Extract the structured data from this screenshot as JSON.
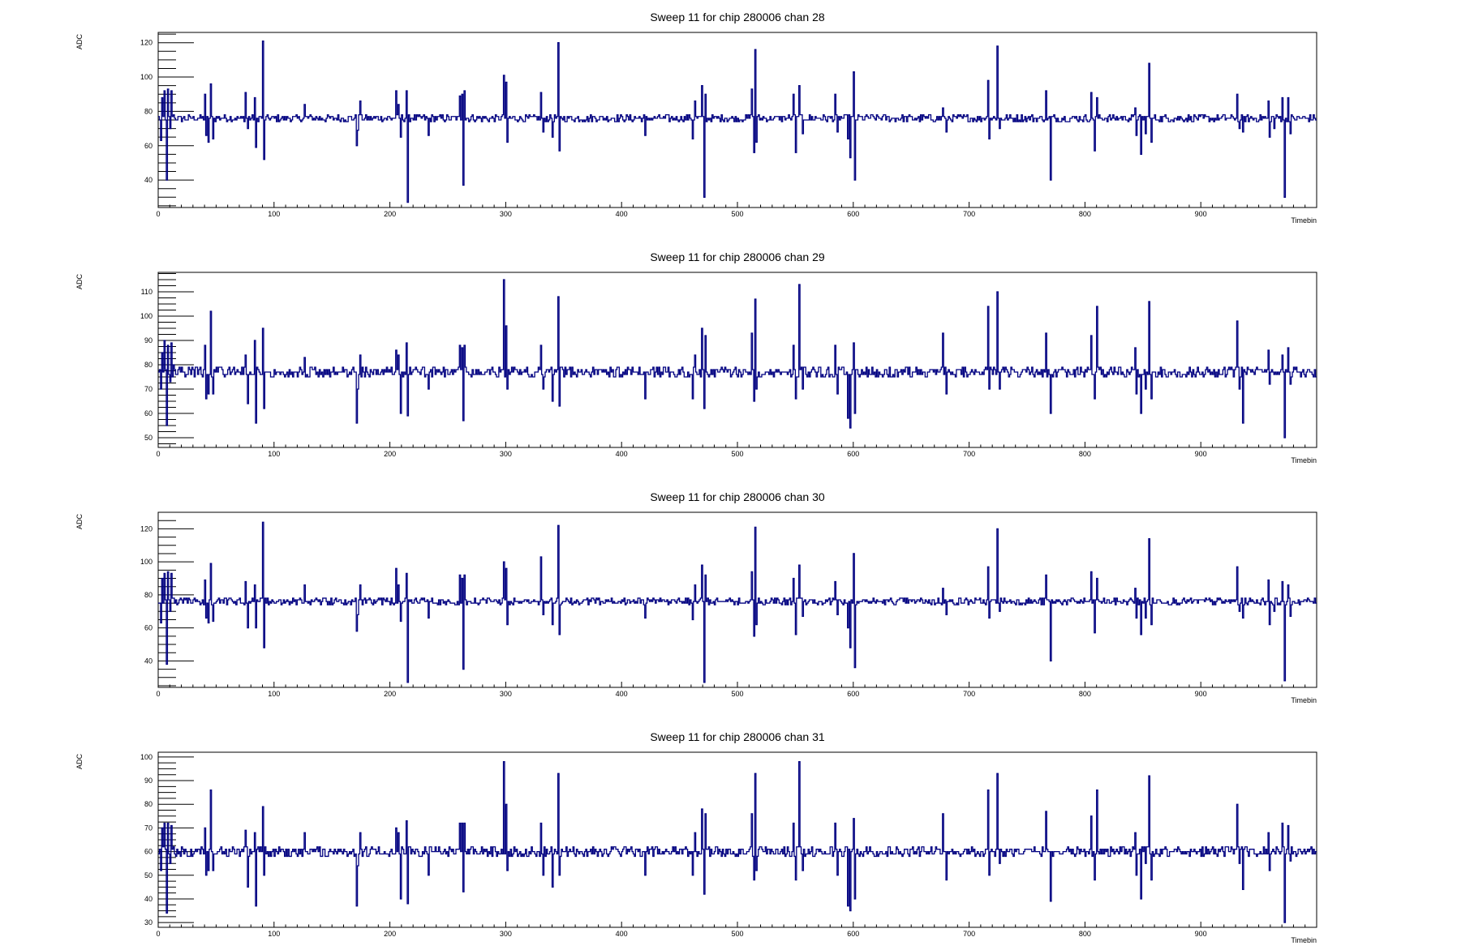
{
  "chart_data": [
    {
      "type": "line",
      "title": "Sweep 11 for chip 280006 chan 28",
      "xlabel": "Timebin",
      "ylabel": "ADC",
      "xlim": [
        0,
        1000
      ],
      "ylim": [
        24,
        126
      ],
      "yticks": [
        40,
        60,
        80,
        100,
        120
      ],
      "xticks": [
        0,
        100,
        200,
        300,
        400,
        500,
        600,
        700,
        800,
        900
      ],
      "baseline": 76,
      "line_color": "#000080",
      "spikes": [
        [
          2,
          63
        ],
        [
          3,
          88
        ],
        [
          5,
          92
        ],
        [
          7,
          40
        ],
        [
          8,
          93
        ],
        [
          10,
          70
        ],
        [
          11,
          92
        ],
        [
          13,
          78
        ],
        [
          40,
          90
        ],
        [
          41,
          66
        ],
        [
          43,
          62
        ],
        [
          45,
          96
        ],
        [
          47,
          64
        ],
        [
          75,
          91
        ],
        [
          77,
          70
        ],
        [
          83,
          88
        ],
        [
          84,
          59
        ],
        [
          90,
          121
        ],
        [
          91,
          52
        ],
        [
          126,
          84
        ],
        [
          171,
          60
        ],
        [
          172,
          69
        ],
        [
          174,
          86
        ],
        [
          205,
          92
        ],
        [
          207,
          84
        ],
        [
          209,
          65
        ],
        [
          214,
          92
        ],
        [
          215,
          27
        ],
        [
          233,
          66
        ],
        [
          260,
          89
        ],
        [
          262,
          90
        ],
        [
          263,
          37
        ],
        [
          264,
          92
        ],
        [
          298,
          101
        ],
        [
          300,
          97
        ],
        [
          301,
          62
        ],
        [
          330,
          91
        ],
        [
          332,
          68
        ],
        [
          340,
          65
        ],
        [
          345,
          120
        ],
        [
          346,
          57
        ],
        [
          420,
          66
        ],
        [
          461,
          64
        ],
        [
          463,
          86
        ],
        [
          469,
          95
        ],
        [
          471,
          30
        ],
        [
          472,
          90
        ],
        [
          512,
          93
        ],
        [
          514,
          56
        ],
        [
          515,
          116
        ],
        [
          516,
          62
        ],
        [
          548,
          90
        ],
        [
          550,
          56
        ],
        [
          553,
          95
        ],
        [
          556,
          67
        ],
        [
          584,
          90
        ],
        [
          586,
          68
        ],
        [
          595,
          64
        ],
        [
          597,
          53
        ],
        [
          600,
          103
        ],
        [
          601,
          40
        ],
        [
          677,
          82
        ],
        [
          680,
          68
        ],
        [
          716,
          98
        ],
        [
          717,
          64
        ],
        [
          724,
          118
        ],
        [
          726,
          70
        ],
        [
          766,
          92
        ],
        [
          770,
          40
        ],
        [
          805,
          91
        ],
        [
          808,
          57
        ],
        [
          810,
          88
        ],
        [
          843,
          82
        ],
        [
          844,
          66
        ],
        [
          848,
          55
        ],
        [
          852,
          67
        ],
        [
          855,
          108
        ],
        [
          857,
          62
        ],
        [
          931,
          90
        ],
        [
          933,
          70
        ],
        [
          936,
          68
        ],
        [
          958,
          86
        ],
        [
          959,
          65
        ],
        [
          963,
          70
        ],
        [
          970,
          88
        ],
        [
          972,
          30
        ],
        [
          975,
          88
        ],
        [
          977,
          67
        ]
      ]
    },
    {
      "type": "line",
      "title": "Sweep 11 for chip 280006 chan 29",
      "xlabel": "Timebin",
      "ylabel": "ADC",
      "xlim": [
        0,
        1000
      ],
      "ylim": [
        46,
        118
      ],
      "yticks": [
        50,
        60,
        70,
        80,
        90,
        100,
        110
      ],
      "xticks": [
        0,
        100,
        200,
        300,
        400,
        500,
        600,
        700,
        800,
        900
      ],
      "baseline": 77,
      "line_color": "#000080",
      "spikes": [
        [
          2,
          70
        ],
        [
          3,
          85
        ],
        [
          5,
          90
        ],
        [
          7,
          55
        ],
        [
          8,
          88
        ],
        [
          10,
          73
        ],
        [
          11,
          89
        ],
        [
          13,
          80
        ],
        [
          40,
          88
        ],
        [
          41,
          66
        ],
        [
          43,
          68
        ],
        [
          45,
          102
        ],
        [
          47,
          68
        ],
        [
          75,
          84
        ],
        [
          77,
          64
        ],
        [
          83,
          90
        ],
        [
          84,
          56
        ],
        [
          90,
          95
        ],
        [
          91,
          62
        ],
        [
          126,
          83
        ],
        [
          171,
          56
        ],
        [
          172,
          70
        ],
        [
          174,
          84
        ],
        [
          205,
          86
        ],
        [
          207,
          84
        ],
        [
          209,
          60
        ],
        [
          214,
          89
        ],
        [
          215,
          59
        ],
        [
          233,
          70
        ],
        [
          260,
          88
        ],
        [
          262,
          87
        ],
        [
          263,
          57
        ],
        [
          264,
          88
        ],
        [
          298,
          115
        ],
        [
          300,
          96
        ],
        [
          301,
          70
        ],
        [
          330,
          88
        ],
        [
          332,
          70
        ],
        [
          340,
          65
        ],
        [
          345,
          108
        ],
        [
          346,
          63
        ],
        [
          420,
          66
        ],
        [
          461,
          66
        ],
        [
          463,
          84
        ],
        [
          469,
          95
        ],
        [
          471,
          62
        ],
        [
          472,
          92
        ],
        [
          512,
          93
        ],
        [
          514,
          65
        ],
        [
          515,
          107
        ],
        [
          516,
          70
        ],
        [
          548,
          88
        ],
        [
          550,
          66
        ],
        [
          553,
          113
        ],
        [
          556,
          70
        ],
        [
          584,
          88
        ],
        [
          586,
          68
        ],
        [
          595,
          58
        ],
        [
          597,
          54
        ],
        [
          600,
          89
        ],
        [
          601,
          60
        ],
        [
          677,
          93
        ],
        [
          680,
          68
        ],
        [
          716,
          104
        ],
        [
          717,
          70
        ],
        [
          724,
          110
        ],
        [
          726,
          70
        ],
        [
          766,
          93
        ],
        [
          770,
          60
        ],
        [
          805,
          92
        ],
        [
          808,
          66
        ],
        [
          810,
          104
        ],
        [
          843,
          87
        ],
        [
          844,
          68
        ],
        [
          848,
          60
        ],
        [
          852,
          70
        ],
        [
          855,
          106
        ],
        [
          857,
          66
        ],
        [
          931,
          98
        ],
        [
          933,
          70
        ],
        [
          936,
          56
        ],
        [
          958,
          86
        ],
        [
          959,
          72
        ],
        [
          963,
          76
        ],
        [
          970,
          84
        ],
        [
          972,
          50
        ],
        [
          975,
          87
        ],
        [
          977,
          72
        ]
      ]
    },
    {
      "type": "line",
      "title": "Sweep 11 for chip 280006 chan 30",
      "xlabel": "Timebin",
      "ylabel": "ADC",
      "xlim": [
        0,
        1000
      ],
      "ylim": [
        24,
        130
      ],
      "yticks": [
        40,
        60,
        80,
        100,
        120
      ],
      "xticks": [
        0,
        100,
        200,
        300,
        400,
        500,
        600,
        700,
        800,
        900
      ],
      "baseline": 76,
      "line_color": "#000080",
      "spikes": [
        [
          2,
          63
        ],
        [
          3,
          90
        ],
        [
          5,
          93
        ],
        [
          7,
          38
        ],
        [
          8,
          94
        ],
        [
          10,
          70
        ],
        [
          11,
          93
        ],
        [
          13,
          78
        ],
        [
          40,
          89
        ],
        [
          41,
          66
        ],
        [
          43,
          63
        ],
        [
          45,
          99
        ],
        [
          47,
          64
        ],
        [
          75,
          88
        ],
        [
          77,
          60
        ],
        [
          83,
          86
        ],
        [
          84,
          60
        ],
        [
          90,
          124
        ],
        [
          91,
          48
        ],
        [
          126,
          86
        ],
        [
          171,
          58
        ],
        [
          172,
          68
        ],
        [
          174,
          86
        ],
        [
          205,
          96
        ],
        [
          207,
          86
        ],
        [
          209,
          64
        ],
        [
          214,
          93
        ],
        [
          215,
          27
        ],
        [
          233,
          66
        ],
        [
          260,
          92
        ],
        [
          262,
          90
        ],
        [
          263,
          35
        ],
        [
          264,
          92
        ],
        [
          298,
          100
        ],
        [
          300,
          96
        ],
        [
          301,
          62
        ],
        [
          330,
          103
        ],
        [
          332,
          68
        ],
        [
          340,
          62
        ],
        [
          345,
          122
        ],
        [
          346,
          56
        ],
        [
          420,
          66
        ],
        [
          461,
          65
        ],
        [
          463,
          86
        ],
        [
          469,
          98
        ],
        [
          471,
          27
        ],
        [
          472,
          92
        ],
        [
          512,
          94
        ],
        [
          514,
          55
        ],
        [
          515,
          121
        ],
        [
          516,
          62
        ],
        [
          548,
          90
        ],
        [
          550,
          56
        ],
        [
          553,
          98
        ],
        [
          556,
          67
        ],
        [
          584,
          88
        ],
        [
          586,
          68
        ],
        [
          595,
          60
        ],
        [
          597,
          48
        ],
        [
          600,
          105
        ],
        [
          601,
          36
        ],
        [
          677,
          84
        ],
        [
          680,
          68
        ],
        [
          716,
          97
        ],
        [
          717,
          66
        ],
        [
          724,
          120
        ],
        [
          726,
          70
        ],
        [
          766,
          92
        ],
        [
          770,
          40
        ],
        [
          805,
          94
        ],
        [
          808,
          57
        ],
        [
          810,
          90
        ],
        [
          843,
          84
        ],
        [
          844,
          66
        ],
        [
          848,
          56
        ],
        [
          852,
          66
        ],
        [
          855,
          114
        ],
        [
          857,
          62
        ],
        [
          931,
          97
        ],
        [
          933,
          70
        ],
        [
          936,
          66
        ],
        [
          958,
          89
        ],
        [
          959,
          62
        ],
        [
          963,
          70
        ],
        [
          970,
          88
        ],
        [
          972,
          28
        ],
        [
          975,
          86
        ],
        [
          977,
          67
        ]
      ]
    },
    {
      "type": "line",
      "title": "Sweep 11 for chip 280006 chan 31",
      "xlabel": "Timebin",
      "ylabel": "ADC",
      "xlim": [
        0,
        1000
      ],
      "ylim": [
        28,
        102
      ],
      "yticks": [
        30,
        40,
        50,
        60,
        70,
        80,
        90,
        100
      ],
      "xticks": [
        0,
        100,
        200,
        300,
        400,
        500,
        600,
        700,
        800,
        900
      ],
      "baseline": 60,
      "line_color": "#000080",
      "spikes": [
        [
          2,
          52
        ],
        [
          3,
          70
        ],
        [
          5,
          72
        ],
        [
          7,
          34
        ],
        [
          8,
          72
        ],
        [
          10,
          55
        ],
        [
          11,
          71
        ],
        [
          13,
          62
        ],
        [
          40,
          70
        ],
        [
          41,
          50
        ],
        [
          43,
          52
        ],
        [
          45,
          86
        ],
        [
          47,
          52
        ],
        [
          75,
          69
        ],
        [
          77,
          45
        ],
        [
          83,
          68
        ],
        [
          84,
          37
        ],
        [
          90,
          79
        ],
        [
          91,
          50
        ],
        [
          126,
          68
        ],
        [
          171,
          37
        ],
        [
          172,
          54
        ],
        [
          174,
          68
        ],
        [
          205,
          70
        ],
        [
          207,
          68
        ],
        [
          209,
          40
        ],
        [
          214,
          73
        ],
        [
          215,
          38
        ],
        [
          233,
          50
        ],
        [
          260,
          72
        ],
        [
          262,
          72
        ],
        [
          263,
          43
        ],
        [
          264,
          72
        ],
        [
          298,
          98
        ],
        [
          300,
          80
        ],
        [
          301,
          52
        ],
        [
          330,
          72
        ],
        [
          332,
          50
        ],
        [
          340,
          45
        ],
        [
          345,
          93
        ],
        [
          346,
          50
        ],
        [
          420,
          50
        ],
        [
          461,
          50
        ],
        [
          463,
          68
        ],
        [
          469,
          78
        ],
        [
          471,
          42
        ],
        [
          472,
          76
        ],
        [
          512,
          76
        ],
        [
          514,
          48
        ],
        [
          515,
          93
        ],
        [
          516,
          52
        ],
        [
          548,
          72
        ],
        [
          550,
          48
        ],
        [
          553,
          98
        ],
        [
          556,
          52
        ],
        [
          584,
          72
        ],
        [
          586,
          50
        ],
        [
          595,
          37
        ],
        [
          597,
          35
        ],
        [
          600,
          74
        ],
        [
          601,
          40
        ],
        [
          677,
          76
        ],
        [
          680,
          48
        ],
        [
          716,
          86
        ],
        [
          717,
          50
        ],
        [
          724,
          93
        ],
        [
          726,
          55
        ],
        [
          766,
          77
        ],
        [
          770,
          39
        ],
        [
          805,
          75
        ],
        [
          808,
          48
        ],
        [
          810,
          86
        ],
        [
          843,
          68
        ],
        [
          844,
          50
        ],
        [
          848,
          40
        ],
        [
          852,
          55
        ],
        [
          855,
          92
        ],
        [
          857,
          48
        ],
        [
          931,
          80
        ],
        [
          933,
          55
        ],
        [
          936,
          44
        ],
        [
          958,
          68
        ],
        [
          959,
          52
        ],
        [
          963,
          60
        ],
        [
          970,
          72
        ],
        [
          972,
          30
        ],
        [
          975,
          71
        ],
        [
          977,
          56
        ]
      ]
    }
  ]
}
